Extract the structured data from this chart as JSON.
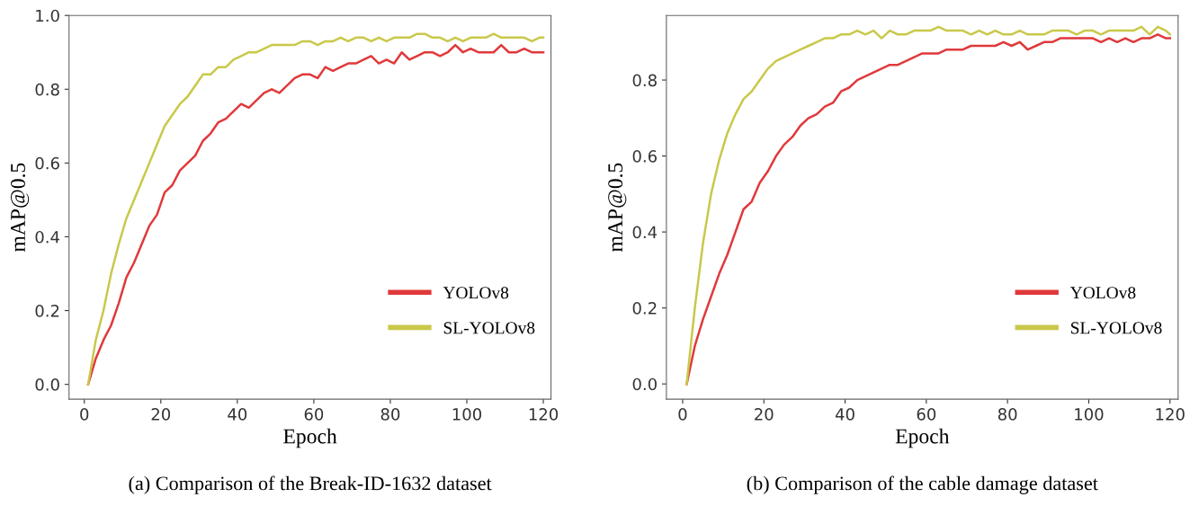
{
  "chart_data": [
    {
      "type": "line",
      "xlabel": "Epoch",
      "ylabel": "mAP@0.5",
      "annotations": [
        "(a) Comparison of the Break-ID-1632 dataset"
      ],
      "x": [
        1,
        3,
        5,
        7,
        9,
        11,
        13,
        15,
        17,
        19,
        21,
        23,
        25,
        27,
        29,
        31,
        33,
        35,
        37,
        39,
        41,
        43,
        45,
        47,
        49,
        51,
        53,
        55,
        57,
        59,
        61,
        63,
        65,
        67,
        69,
        71,
        73,
        75,
        77,
        79,
        81,
        83,
        85,
        87,
        89,
        91,
        93,
        95,
        97,
        99,
        101,
        103,
        105,
        107,
        109,
        111,
        113,
        115,
        117,
        119,
        120
      ],
      "series": [
        {
          "name": "YOLOv8",
          "color": "#e0393b",
          "values": [
            0,
            0.07,
            0.12,
            0.16,
            0.22,
            0.29,
            0.33,
            0.38,
            0.43,
            0.46,
            0.52,
            0.54,
            0.58,
            0.6,
            0.62,
            0.66,
            0.68,
            0.71,
            0.72,
            0.74,
            0.76,
            0.75,
            0.77,
            0.79,
            0.8,
            0.79,
            0.81,
            0.83,
            0.84,
            0.84,
            0.83,
            0.86,
            0.85,
            0.86,
            0.87,
            0.87,
            0.88,
            0.89,
            0.87,
            0.88,
            0.87,
            0.9,
            0.88,
            0.89,
            0.9,
            0.9,
            0.89,
            0.9,
            0.92,
            0.9,
            0.91,
            0.9,
            0.9,
            0.9,
            0.92,
            0.9,
            0.9,
            0.91,
            0.9,
            0.9,
            0.9
          ]
        },
        {
          "name": "SL-YOLOv8",
          "color": "#c9c84a",
          "values": [
            0,
            0.12,
            0.2,
            0.3,
            0.38,
            0.45,
            0.5,
            0.55,
            0.6,
            0.65,
            0.7,
            0.73,
            0.76,
            0.78,
            0.81,
            0.84,
            0.84,
            0.86,
            0.86,
            0.88,
            0.89,
            0.9,
            0.9,
            0.91,
            0.92,
            0.92,
            0.92,
            0.92,
            0.93,
            0.93,
            0.92,
            0.93,
            0.93,
            0.94,
            0.93,
            0.94,
            0.94,
            0.93,
            0.94,
            0.93,
            0.94,
            0.94,
            0.94,
            0.95,
            0.95,
            0.94,
            0.94,
            0.93,
            0.94,
            0.93,
            0.94,
            0.94,
            0.94,
            0.95,
            0.94,
            0.94,
            0.94,
            0.94,
            0.93,
            0.94,
            0.94
          ]
        }
      ],
      "xlim": [
        -4,
        122
      ],
      "xticks": [
        0,
        20,
        40,
        60,
        80,
        100,
        120
      ],
      "ylim": [
        -0.04,
        1.0
      ],
      "yticks": [
        {
          "value": 0,
          "label": "0.0"
        },
        {
          "value": 0.2,
          "label": "0.2"
        },
        {
          "value": 0.4,
          "label": "0.4"
        },
        {
          "value": 0.6,
          "label": "0.6"
        },
        {
          "value": 0.8,
          "label": "0.8"
        },
        {
          "value": 1.0,
          "label": "1.0"
        }
      ],
      "legend": "lower right",
      "grid": false,
      "marker": "none",
      "line_style": "solid"
    },
    {
      "type": "line",
      "xlabel": "Epoch",
      "ylabel": "mAP@0.5",
      "annotations": [
        "(b) Comparison of the cable damage dataset"
      ],
      "x": [
        1,
        3,
        5,
        7,
        9,
        11,
        13,
        15,
        17,
        19,
        21,
        23,
        25,
        27,
        29,
        31,
        33,
        35,
        37,
        39,
        41,
        43,
        45,
        47,
        49,
        51,
        53,
        55,
        57,
        59,
        61,
        63,
        65,
        67,
        69,
        71,
        73,
        75,
        77,
        79,
        81,
        83,
        85,
        87,
        89,
        91,
        93,
        95,
        97,
        99,
        101,
        103,
        105,
        107,
        109,
        111,
        113,
        115,
        117,
        119,
        120
      ],
      "series": [
        {
          "name": "YOLOv8",
          "color": "#e0393b",
          "values": [
            0,
            0.1,
            0.17,
            0.23,
            0.29,
            0.34,
            0.4,
            0.46,
            0.48,
            0.53,
            0.56,
            0.6,
            0.63,
            0.65,
            0.68,
            0.7,
            0.71,
            0.73,
            0.74,
            0.77,
            0.78,
            0.8,
            0.81,
            0.82,
            0.83,
            0.84,
            0.84,
            0.85,
            0.86,
            0.87,
            0.87,
            0.87,
            0.88,
            0.88,
            0.88,
            0.89,
            0.89,
            0.89,
            0.89,
            0.9,
            0.89,
            0.9,
            0.88,
            0.89,
            0.9,
            0.9,
            0.91,
            0.91,
            0.91,
            0.91,
            0.91,
            0.9,
            0.91,
            0.9,
            0.91,
            0.9,
            0.91,
            0.91,
            0.92,
            0.91,
            0.91
          ]
        },
        {
          "name": "SL-YOLOv8",
          "color": "#c9c84a",
          "values": [
            0,
            0.2,
            0.37,
            0.5,
            0.59,
            0.66,
            0.71,
            0.75,
            0.77,
            0.8,
            0.83,
            0.85,
            0.86,
            0.87,
            0.88,
            0.89,
            0.9,
            0.91,
            0.91,
            0.92,
            0.92,
            0.93,
            0.92,
            0.93,
            0.91,
            0.93,
            0.92,
            0.92,
            0.93,
            0.93,
            0.93,
            0.94,
            0.93,
            0.93,
            0.93,
            0.92,
            0.93,
            0.92,
            0.93,
            0.92,
            0.92,
            0.93,
            0.92,
            0.92,
            0.92,
            0.93,
            0.93,
            0.93,
            0.92,
            0.93,
            0.93,
            0.92,
            0.93,
            0.93,
            0.93,
            0.93,
            0.94,
            0.92,
            0.94,
            0.93,
            0.92
          ]
        }
      ],
      "xlim": [
        -4,
        122
      ],
      "xticks": [
        0,
        20,
        40,
        60,
        80,
        100,
        120
      ],
      "ylim": [
        -0.04,
        0.97
      ],
      "yticks": [
        {
          "value": 0,
          "label": "0.0"
        },
        {
          "value": 0.2,
          "label": "0.2"
        },
        {
          "value": 0.4,
          "label": "0.4"
        },
        {
          "value": 0.6,
          "label": "0.6"
        },
        {
          "value": 0.8,
          "label": "0.8"
        }
      ],
      "legend": "lower right",
      "grid": false,
      "marker": "none",
      "line_style": "solid"
    }
  ]
}
